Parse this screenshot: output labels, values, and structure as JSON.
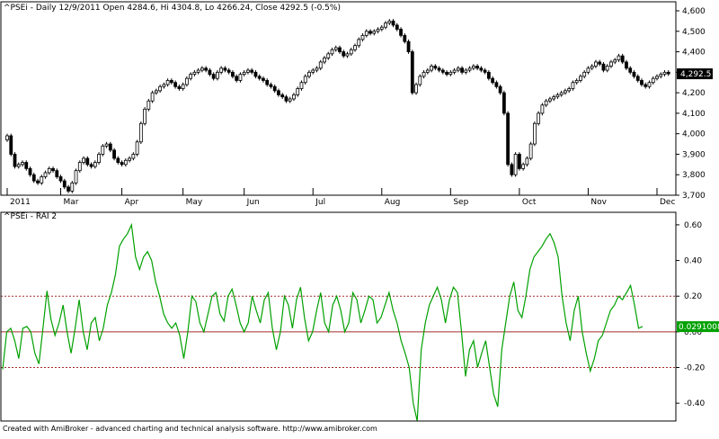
{
  "footer": "Created with AmiBroker - advanced charting and technical analysis software. http://www.amibroker.com",
  "chart_data": [
    {
      "type": "candlestick",
      "title": "^PSEi - Daily 12/9/2011 Open 4284.6, Hi 4304.8, Lo 4266.24, Close 4292.5 (-0.5%)",
      "ylim": [
        3700,
        4600
      ],
      "yticks": [
        3700,
        3800,
        3900,
        4000,
        4100,
        4200,
        4300,
        4400,
        4500,
        4600
      ],
      "ytick_labels": [
        "3,700",
        "3,800",
        "3,900",
        "4,000",
        "4,100",
        "4,200",
        "4,300",
        "4,400",
        "4,500",
        "4,600"
      ],
      "last_value_label": "4,292.5",
      "last_value": 4292.5,
      "months": [
        "2011",
        "Mar",
        "Apr",
        "May",
        "Jun",
        "Jul",
        "Aug",
        "Sep",
        "Oct",
        "Nov",
        "Dec"
      ],
      "close": [
        3990,
        3900,
        3840,
        3850,
        3860,
        3830,
        3800,
        3770,
        3760,
        3790,
        3810,
        3830,
        3820,
        3790,
        3770,
        3740,
        3720,
        3760,
        3820,
        3860,
        3880,
        3850,
        3840,
        3860,
        3900,
        3940,
        3950,
        3920,
        3880,
        3860,
        3850,
        3870,
        3880,
        3900,
        3960,
        4050,
        4120,
        4160,
        4200,
        4210,
        4230,
        4240,
        4260,
        4250,
        4230,
        4220,
        4240,
        4270,
        4290,
        4300,
        4310,
        4320,
        4310,
        4290,
        4270,
        4300,
        4320,
        4310,
        4300,
        4280,
        4260,
        4290,
        4300,
        4310,
        4300,
        4280,
        4270,
        4260,
        4240,
        4230,
        4210,
        4190,
        4180,
        4160,
        4170,
        4190,
        4220,
        4250,
        4280,
        4300,
        4310,
        4320,
        4350,
        4370,
        4390,
        4410,
        4420,
        4400,
        4380,
        4390,
        4410,
        4430,
        4460,
        4480,
        4500,
        4490,
        4500,
        4510,
        4520,
        4540,
        4550,
        4530,
        4510,
        4480,
        4450,
        4400,
        4200,
        4240,
        4280,
        4300,
        4310,
        4330,
        4320,
        4310,
        4300,
        4290,
        4300,
        4310,
        4320,
        4300,
        4310,
        4320,
        4330,
        4320,
        4310,
        4300,
        4270,
        4250,
        4230,
        4200,
        4100,
        3850,
        3800,
        3900,
        3830,
        3850,
        3880,
        3950,
        4050,
        4100,
        4140,
        4160,
        4170,
        4180,
        4190,
        4200,
        4210,
        4220,
        4250,
        4260,
        4280,
        4300,
        4320,
        4330,
        4350,
        4340,
        4310,
        4330,
        4350,
        4360,
        4380,
        4350,
        4320,
        4300,
        4280,
        4260,
        4240,
        4230,
        4250,
        4270,
        4280,
        4290,
        4300,
        4292.5
      ],
      "oscillator": {
        "title": "^PSEi - RAI 2",
        "ylim": [
          -0.5,
          0.65
        ],
        "yticks": [
          -0.4,
          -0.2,
          0.0,
          0.2,
          0.4,
          0.6
        ],
        "ytick_labels": [
          "-0.40",
          "-0.20",
          "0.00",
          "0.20",
          "0.40",
          "0.60"
        ],
        "reference_lines": [
          0.2,
          0.0,
          -0.2
        ],
        "last_value_label": "0.0291008",
        "last_value": 0.0291008,
        "values": [
          -0.21,
          0.0,
          0.02,
          -0.05,
          -0.15,
          0.02,
          0.03,
          0.0,
          -0.12,
          -0.18,
          0.02,
          0.23,
          0.07,
          -0.02,
          0.05,
          0.15,
          0.0,
          -0.12,
          0.02,
          0.18,
          0.0,
          -0.1,
          0.05,
          0.08,
          -0.05,
          0.02,
          0.15,
          0.22,
          0.32,
          0.48,
          0.52,
          0.55,
          0.6,
          0.42,
          0.35,
          0.42,
          0.45,
          0.4,
          0.28,
          0.2,
          0.1,
          0.05,
          0.02,
          0.05,
          -0.02,
          -0.15,
          0.0,
          0.2,
          0.17,
          0.05,
          0.0,
          0.1,
          0.2,
          0.22,
          0.1,
          0.06,
          0.2,
          0.24,
          0.15,
          0.05,
          0.0,
          0.05,
          0.2,
          0.12,
          0.05,
          0.18,
          0.22,
          0.02,
          -0.1,
          0.0,
          0.2,
          0.15,
          0.02,
          0.18,
          0.25,
          0.08,
          -0.05,
          0.0,
          0.12,
          0.22,
          0.05,
          0.0,
          0.15,
          0.2,
          0.12,
          0.0,
          0.05,
          0.22,
          0.18,
          0.05,
          0.12,
          0.2,
          0.18,
          0.05,
          0.08,
          0.15,
          0.22,
          0.12,
          0.05,
          -0.05,
          -0.12,
          -0.2,
          -0.4,
          -0.5,
          -0.1,
          0.05,
          0.15,
          0.2,
          0.25,
          0.18,
          0.05,
          0.18,
          0.25,
          0.22,
          0.0,
          -0.25,
          -0.1,
          -0.05,
          -0.2,
          -0.12,
          -0.05,
          -0.2,
          -0.35,
          -0.42,
          -0.1,
          0.05,
          0.2,
          0.28,
          0.12,
          0.08,
          0.2,
          0.35,
          0.42,
          0.45,
          0.48,
          0.52,
          0.55,
          0.5,
          0.42,
          0.2,
          0.05,
          -0.05,
          0.12,
          0.2,
          0.0,
          -0.12,
          -0.22,
          -0.15,
          -0.05,
          -0.02,
          0.05,
          0.12,
          0.15,
          0.2,
          0.18,
          0.22,
          0.26,
          0.15,
          0.02,
          0.03
        ]
      }
    }
  ]
}
